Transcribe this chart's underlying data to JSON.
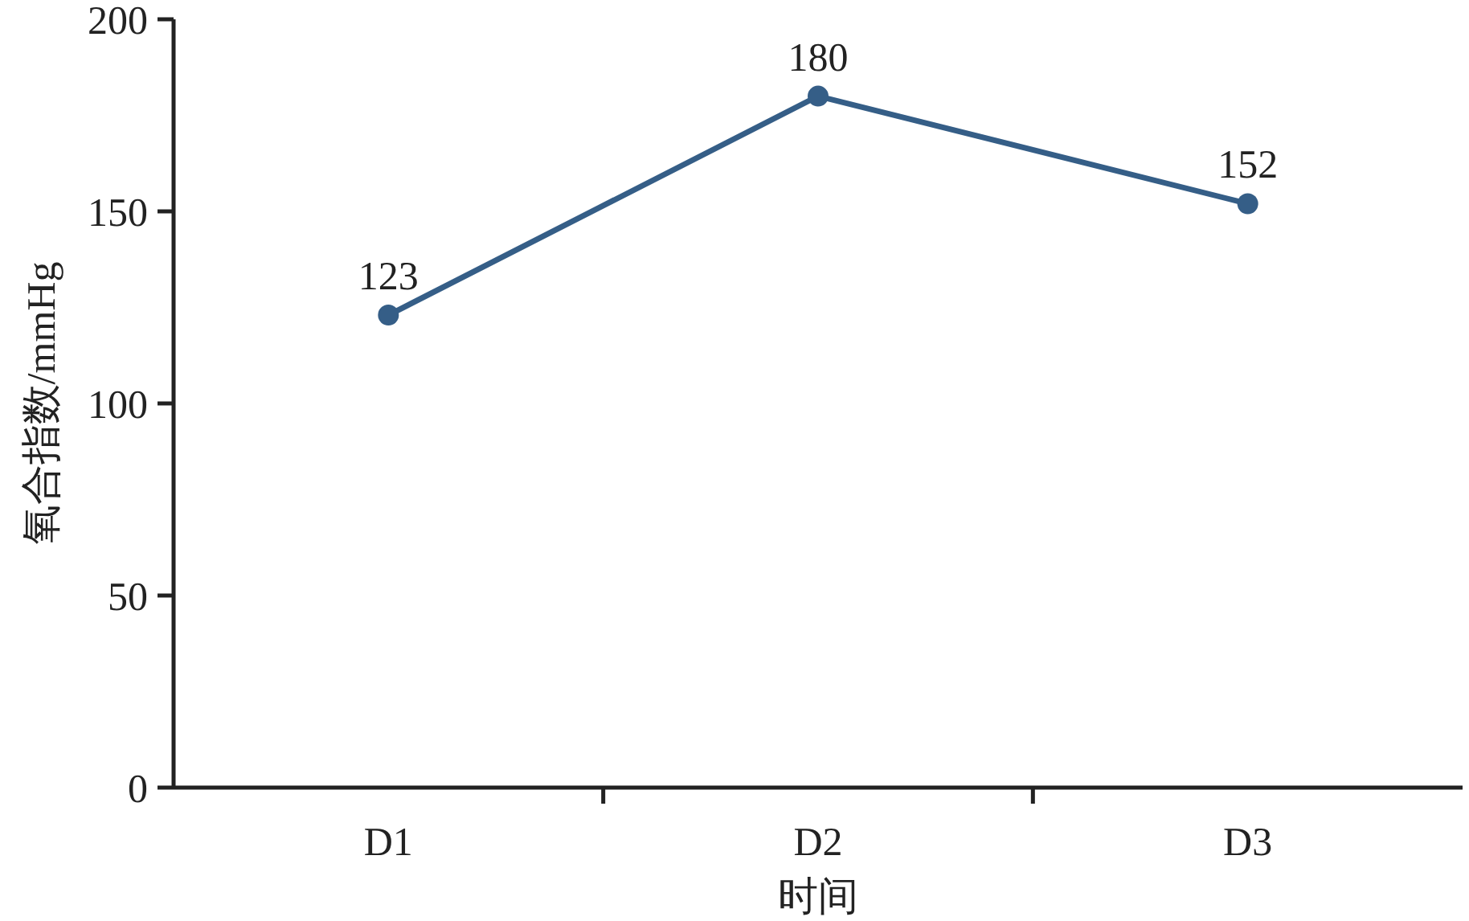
{
  "chart_data": {
    "type": "line",
    "categories": [
      "D1",
      "D2",
      "D3"
    ],
    "series": [
      {
        "color": "#355e87",
        "values": [
          123,
          180,
          152
        ]
      }
    ],
    "xlabel": "时间",
    "ylabel": "氧合指数/mmHg",
    "ylim": [
      0,
      200
    ],
    "yticks": [
      0,
      50,
      100,
      150,
      200
    ],
    "marker": "circle",
    "data_labels": true,
    "grid": false
  }
}
